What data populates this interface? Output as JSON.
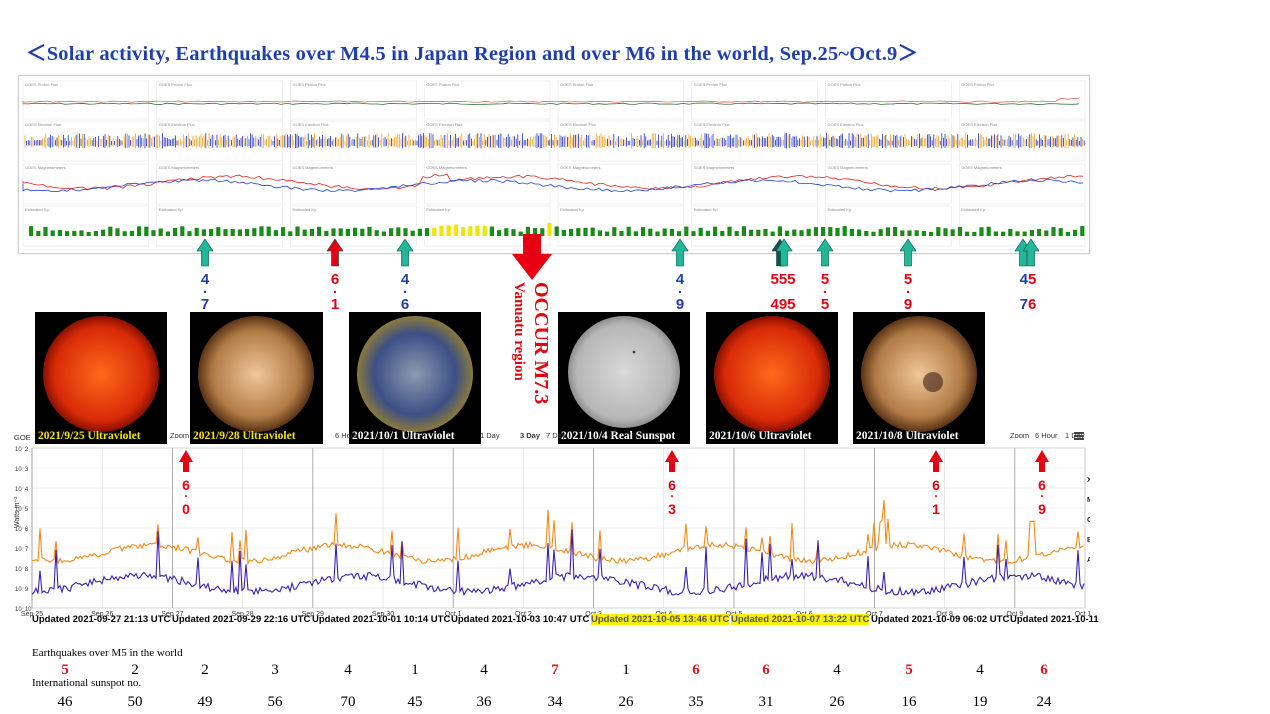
{
  "title": "＜Solar activity, Earthquakes over M4.5 in Japan Region and over M6 in the world,   Sep.25~Oct.9＞",
  "top_panel": {
    "panel_labels": [
      "GOES Proton Flux",
      "GOES Electron Flux",
      "GOES Magnetometers",
      "Estimated Kp"
    ],
    "kp_bar_colors": {
      "normal": "#1a8a1a",
      "elevated": "#f0e400"
    }
  },
  "markers": [
    {
      "kind": "japan",
      "value": "4.7"
    },
    {
      "kind": "world",
      "value": "6.1"
    },
    {
      "kind": "japan",
      "value": "4.6"
    },
    {
      "kind": "japan",
      "value": "4.9"
    },
    {
      "kind": "mixed",
      "value_top": "555",
      "value_bottom": "495"
    },
    {
      "kind": "mixed",
      "value": "5.5"
    },
    {
      "kind": "mixed",
      "value": "5.9"
    },
    {
      "kind": "mixed",
      "value_top": "45",
      "value_bottom": "76"
    }
  ],
  "occur_label": {
    "line1": "OCCUR M7.3",
    "line2": "Vanuatu region"
  },
  "thumbnails": [
    {
      "caption": "2021/9/25 Ultraviolet",
      "style": "red"
    },
    {
      "caption": "2021/9/28 Ultraviolet",
      "style": "bronze"
    },
    {
      "caption": "2021/10/1 Ultraviolet",
      "style": "blue"
    },
    {
      "caption": "2021/10/4 Real Sunspot",
      "style": "white"
    },
    {
      "caption": "2021/10/6 Ultraviolet",
      "style": "red"
    },
    {
      "caption": "2021/10/8 Ultraviolet",
      "style": "bronze"
    }
  ],
  "xray_panel": {
    "header_fragments": [
      "GOE",
      "Zoom",
      "6 Hour",
      "1 Day",
      "3 Day",
      "7 Day",
      "Zoom",
      "6 Hour",
      "1 Day"
    ],
    "ylabel": "Watts m⁻²",
    "flare_classes": [
      "X",
      "M",
      "C",
      "B",
      "A"
    ],
    "date_ticks": [
      "Sep 25",
      "Sep 26",
      "Sep 27",
      "Sep 28",
      "Sep 29",
      "Sep 30",
      "Oct 1",
      "Oct 2",
      "Oct 3",
      "Oct 4",
      "Oct 5",
      "Oct 6",
      "Oct 7",
      "Oct 8",
      "Oct 9",
      "Oct 10"
    ],
    "updated_labels": [
      "Updated 2021-09-27 21:13 UTC",
      "Updated 2021-09-29 22:16 UTC",
      "Updated 2021-10-01 10:14 UTC",
      "Updated 2021-10-03 10:47 UTC",
      "Updated 2021-10-05 13:46 UTC",
      "Updated 2021-10-07 13:22 UTC",
      "Updated 2021-10-09 06:02 UTC",
      "Updated 2021-10-11"
    ],
    "world_quakes": [
      "6.0",
      "6.3",
      "6.1",
      "6.9"
    ],
    "series_colors": {
      "long": "#f28a1a",
      "short": "#3a1fae"
    }
  },
  "chart_data": {
    "type": "table",
    "title": "Earthquakes over M5 in the world / International sunspot no.",
    "categories": [
      "Sep 25",
      "Sep 26",
      "Sep 27",
      "Sep 28",
      "Sep 29",
      "Sep 30",
      "Oct 1",
      "Oct 2",
      "Oct 3",
      "Oct 4",
      "Oct 5",
      "Oct 6",
      "Oct 7",
      "Oct 8",
      "Oct 9"
    ],
    "series": [
      {
        "name": "Earthquakes over M5 in the world",
        "values": [
          5,
          2,
          2,
          3,
          4,
          1,
          4,
          7,
          1,
          6,
          6,
          4,
          5,
          4,
          6
        ]
      },
      {
        "name": "International sunspot no.",
        "values": [
          46,
          50,
          49,
          56,
          70,
          45,
          36,
          34,
          26,
          35,
          31,
          26,
          16,
          19,
          24
        ]
      }
    ],
    "highlighted_quake_days": [
      "Sep 25",
      "Oct 2",
      "Oct 4",
      "Oct 5",
      "Oct 7",
      "Oct 9"
    ]
  },
  "row_labels": {
    "quakes": "Earthquakes over M5 in the world",
    "sunspots": "International sunspot no."
  }
}
